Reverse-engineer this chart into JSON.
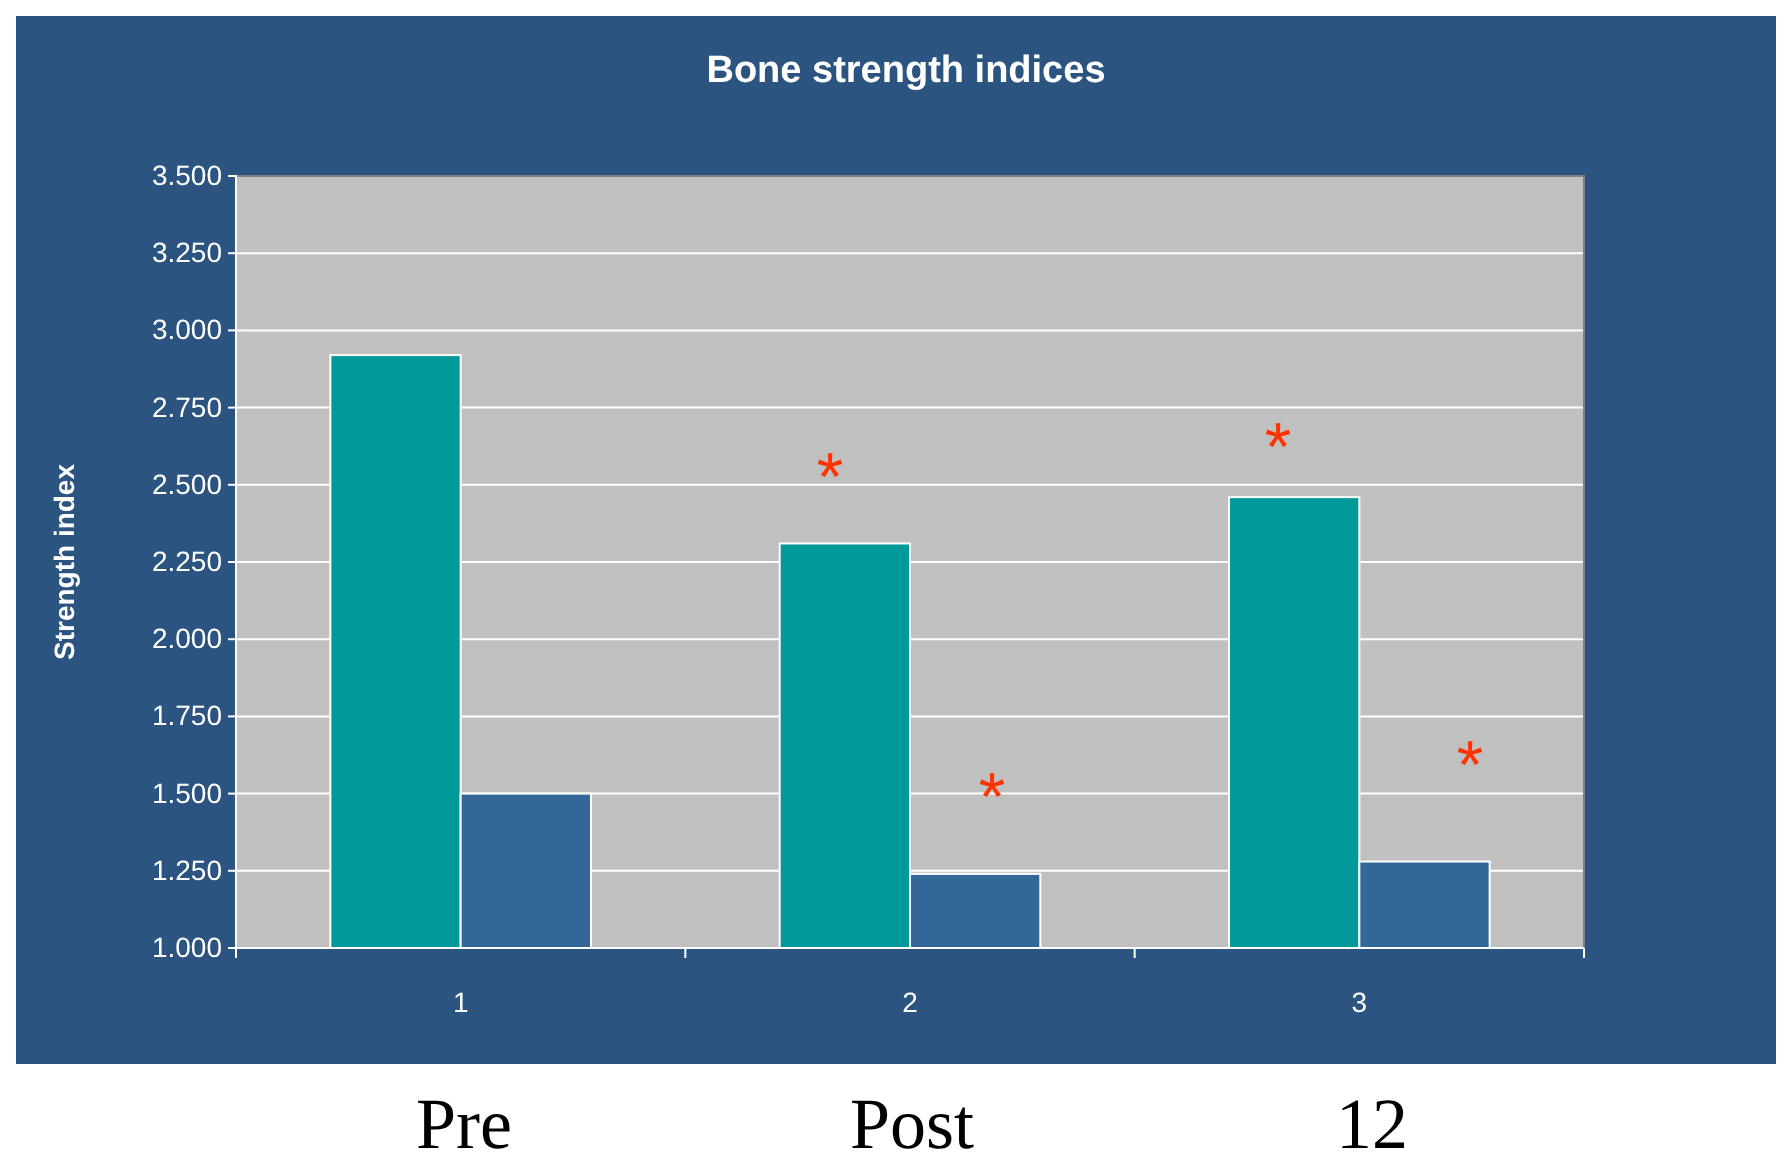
{
  "chart_data": {
    "type": "bar",
    "title": "Bone strength indices",
    "ylabel": "Strength index",
    "categories": [
      "1",
      "2",
      "3"
    ],
    "series": [
      {
        "color": "#009999",
        "values": [
          2.92,
          2.31,
          2.46
        ]
      },
      {
        "color": "#336699",
        "values": [
          1.5,
          1.24,
          1.28
        ]
      }
    ],
    "ylim": [
      1,
      3.5
    ],
    "yticks": [
      {
        "value": 1,
        "label": "1.000"
      },
      {
        "value": 1.25,
        "label": "1.250"
      },
      {
        "value": 1.5,
        "label": "1.500"
      },
      {
        "value": 1.75,
        "label": "1.750"
      },
      {
        "value": 2,
        "label": "2.000"
      },
      {
        "value": 2.25,
        "label": "2.250"
      },
      {
        "value": 2.5,
        "label": "2.500"
      },
      {
        "value": 2.75,
        "label": "2.750"
      },
      {
        "value": 3,
        "label": "3.000"
      },
      {
        "value": 3.25,
        "label": "3.250"
      },
      {
        "value": 3.5,
        "label": "3.500"
      }
    ],
    "grid": "y",
    "annotations": [
      "*",
      "*",
      "*",
      "*",
      "Pre",
      "Post",
      "12"
    ]
  }
}
